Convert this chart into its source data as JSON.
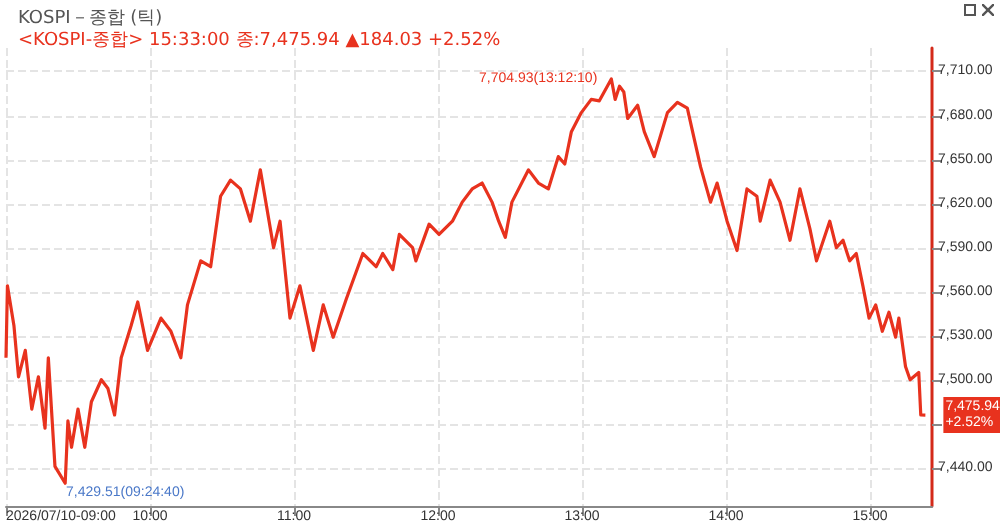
{
  "chart_data": {
    "type": "line",
    "title": "KOSPI－종합 (틱)",
    "subtitle": "<KOSPI-종합> 15:33:00 종:7,475.94 ▲184.03 +2.52%",
    "marker": "none",
    "line_style": "solid",
    "grid": true,
    "xlim": [
      9,
      15.43
    ],
    "ylim": [
      7414,
      7726
    ],
    "xticks": [
      {
        "value": 9,
        "label": "2026/07/10-09:00"
      },
      {
        "value": 10,
        "label": "10:00"
      },
      {
        "value": 11,
        "label": "11:00"
      },
      {
        "value": 12,
        "label": "12:00"
      },
      {
        "value": 13,
        "label": "13:00"
      },
      {
        "value": 14,
        "label": "14:00"
      },
      {
        "value": 15,
        "label": "15:00"
      }
    ],
    "yticks": [
      {
        "value": 7440,
        "label": "7,440.00"
      },
      {
        "value": 7470,
        "label": null
      },
      {
        "value": 7500,
        "label": "7,500.00"
      },
      {
        "value": 7530,
        "label": "7,530.00"
      },
      {
        "value": 7560,
        "label": "7,560.00"
      },
      {
        "value": 7590,
        "label": "7,590.00"
      },
      {
        "value": 7620,
        "label": "7,620.00"
      },
      {
        "value": 7650,
        "label": "7,650.00"
      },
      {
        "value": 7680,
        "label": "7,680.00"
      },
      {
        "value": 7710,
        "label": "7,710.00"
      }
    ],
    "annotations": [
      {
        "text": "7,704.93(13:12:10)",
        "x": 13.2033,
        "y": 7704.93
      },
      {
        "text": "7,429.51(09:24:40)",
        "x": 9.411,
        "y": 7429.51
      },
      {
        "text": "7,475.94\n+2.52%",
        "x": 15.384,
        "y": 7475.94
      }
    ],
    "x": [
      9.0,
      9.01,
      9.055,
      9.087,
      9.134,
      9.179,
      9.225,
      9.271,
      9.294,
      9.34,
      9.411,
      9.43,
      9.455,
      9.5,
      9.547,
      9.593,
      9.662,
      9.708,
      9.754,
      9.8,
      9.869,
      9.915,
      9.983,
      10.076,
      10.145,
      10.214,
      10.26,
      10.352,
      10.421,
      10.49,
      10.559,
      10.628,
      10.697,
      10.766,
      10.858,
      10.903,
      10.972,
      11.041,
      11.134,
      11.203,
      11.272,
      11.363,
      11.478,
      11.57,
      11.616,
      11.686,
      11.731,
      11.823,
      11.846,
      11.938,
      12.007,
      12.1,
      12.168,
      12.237,
      12.306,
      12.375,
      12.421,
      12.467,
      12.513,
      12.628,
      12.697,
      12.766,
      12.835,
      12.88,
      12.926,
      12.995,
      13.064,
      13.12,
      13.2033,
      13.23,
      13.26,
      13.29,
      13.317,
      13.386,
      13.432,
      13.501,
      13.593,
      13.662,
      13.731,
      13.777,
      13.823,
      13.892,
      13.938,
      14.007,
      14.076,
      14.145,
      14.214,
      14.237,
      14.306,
      14.375,
      14.444,
      14.513,
      14.582,
      14.628,
      14.72,
      14.766,
      14.812,
      14.858,
      14.904,
      14.95,
      14.993,
      15.039,
      15.085,
      15.131,
      15.177,
      15.2,
      15.246,
      15.278,
      15.338,
      15.352,
      15.384
    ],
    "series": [
      {
        "color": "#e8321e",
        "values": [
          7515,
          7564,
          7537,
          7502,
          7520,
          7480,
          7502,
          7467,
          7515,
          7441,
          7429.51,
          7472,
          7454,
          7480,
          7454,
          7485,
          7500,
          7494,
          7476,
          7515,
          7537,
          7553,
          7520,
          7542,
          7533,
          7515,
          7551,
          7581,
          7577,
          7625,
          7636,
          7630,
          7608,
          7643,
          7590,
          7608,
          7542,
          7564,
          7520,
          7551,
          7529,
          7555,
          7586,
          7577,
          7586,
          7575,
          7599,
          7590,
          7581,
          7606,
          7599,
          7608,
          7621,
          7630,
          7634,
          7621,
          7608,
          7597,
          7621,
          7643,
          7634,
          7630,
          7652,
          7647,
          7669,
          7682,
          7691,
          7690,
          7704.93,
          7691,
          7700,
          7696,
          7678,
          7687,
          7669,
          7652,
          7682,
          7689,
          7685,
          7665,
          7645,
          7621,
          7634,
          7608,
          7588,
          7630,
          7625,
          7608,
          7636,
          7621,
          7595,
          7630,
          7603,
          7581,
          7608,
          7590,
          7595,
          7581,
          7586,
          7564,
          7542,
          7551,
          7533,
          7546,
          7529,
          7542,
          7509,
          7500,
          7505,
          7476,
          7475.94
        ]
      }
    ]
  }
}
